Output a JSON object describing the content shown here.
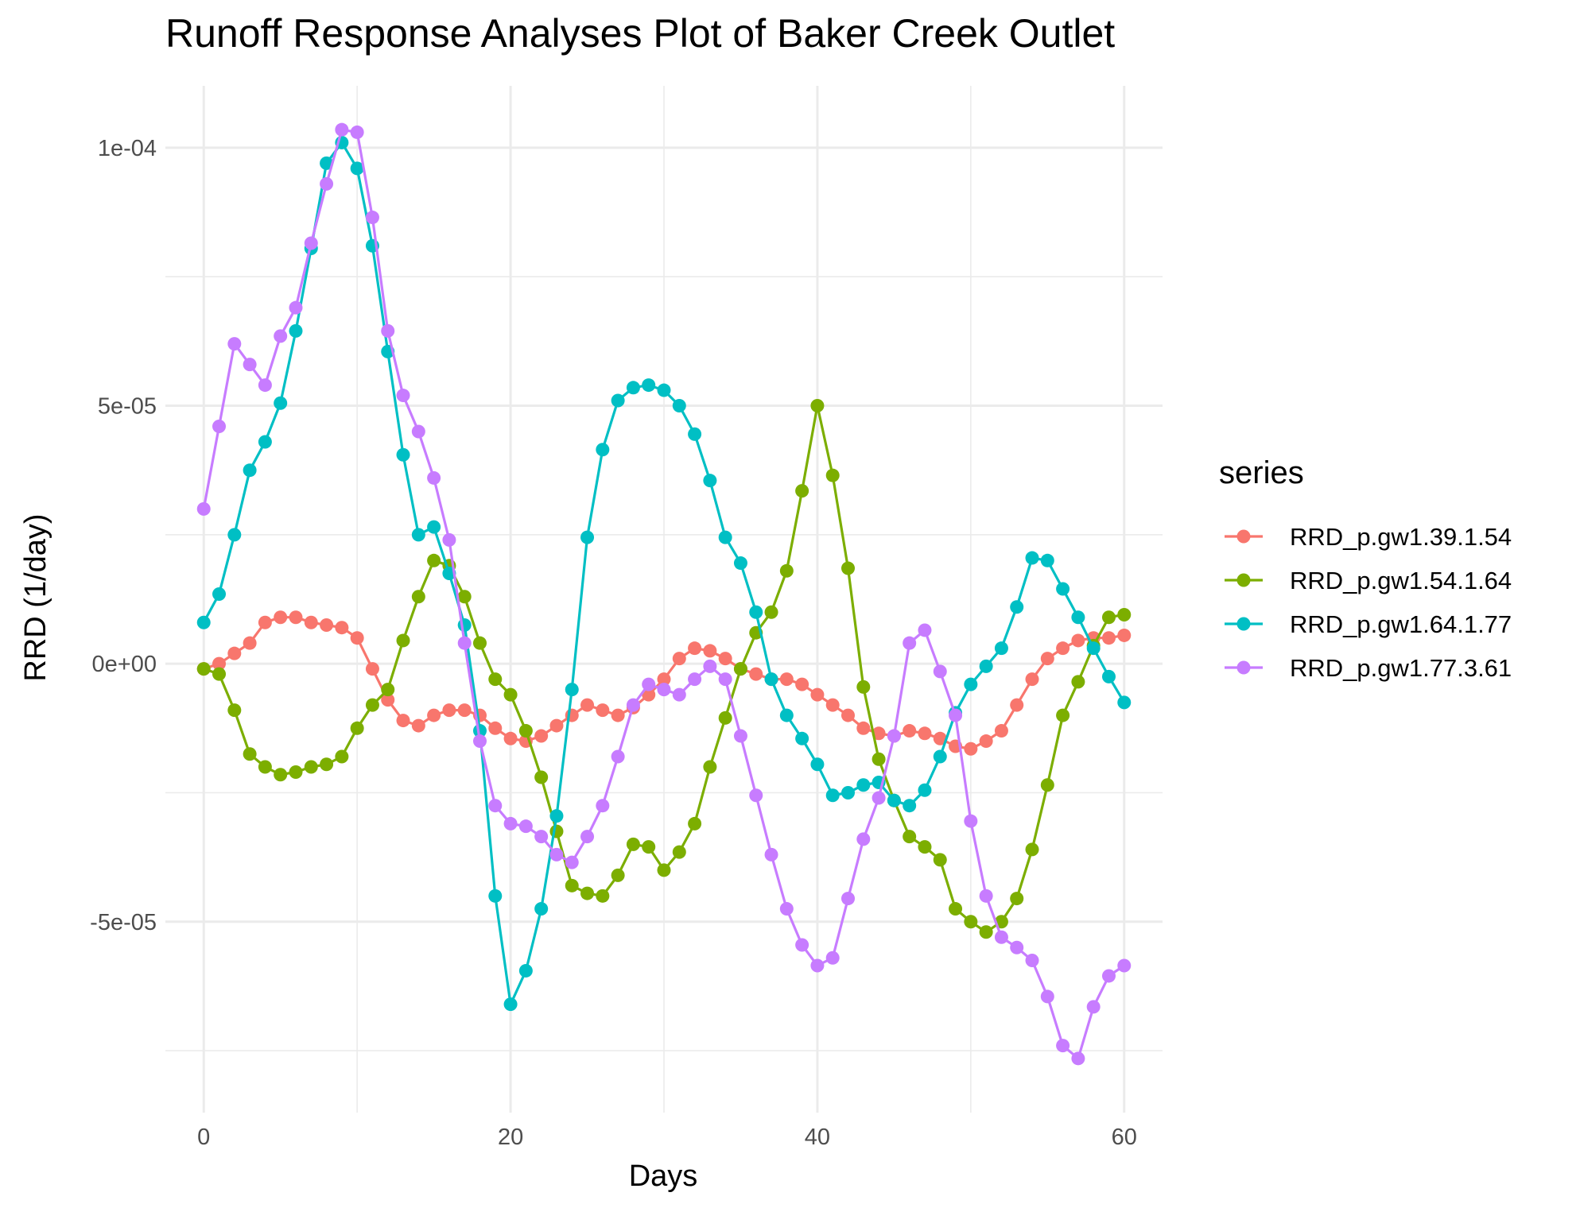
{
  "chart_data": {
    "type": "line",
    "title": "Runoff Response Analyses Plot of Baker Creek Outlet",
    "xlabel": "Days",
    "ylabel": "RRD (1/day)",
    "xlim": [
      -2.5,
      62.5
    ],
    "ylim": [
      -8.7e-05,
      0.000112
    ],
    "x_ticks": [
      0,
      20,
      40,
      60
    ],
    "x_tick_labels": [
      "0",
      "20",
      "40",
      "60"
    ],
    "y_ticks": [
      -5e-05,
      0,
      5e-05,
      0.0001
    ],
    "y_tick_labels": [
      "-5e-05",
      "0e+00",
      "5e-05",
      "1e-04"
    ],
    "grid": true,
    "legend": {
      "title": "series",
      "position": "right"
    },
    "x": [
      0,
      1,
      2,
      3,
      4,
      5,
      6,
      7,
      8,
      9,
      10,
      11,
      12,
      13,
      14,
      15,
      16,
      17,
      18,
      19,
      20,
      21,
      22,
      23,
      24,
      25,
      26,
      27,
      28,
      29,
      30,
      31,
      32,
      33,
      34,
      35,
      36,
      37,
      38,
      39,
      40,
      41,
      42,
      43,
      44,
      45,
      46,
      47,
      48,
      49,
      50,
      51,
      52,
      53,
      54,
      55,
      56,
      57,
      58,
      59,
      60
    ],
    "series": [
      {
        "name": "RRD_p.gw1.39.1.54",
        "color": "#F8766D",
        "values": [
          -1e-06,
          0,
          2e-06,
          4e-06,
          8e-06,
          9e-06,
          9e-06,
          8e-06,
          7.5e-06,
          7e-06,
          5e-06,
          -1e-06,
          -7e-06,
          -1.1e-05,
          -1.2e-05,
          -1e-05,
          -9e-06,
          -9e-06,
          -1e-05,
          -1.25e-05,
          -1.45e-05,
          -1.5e-05,
          -1.4e-05,
          -1.2e-05,
          -1e-05,
          -8e-06,
          -9e-06,
          -1e-05,
          -8.5e-06,
          -6e-06,
          -3e-06,
          1e-06,
          3e-06,
          2.5e-06,
          1e-06,
          -1e-06,
          -2e-06,
          -3e-06,
          -3e-06,
          -4e-06,
          -6e-06,
          -8e-06,
          -1e-05,
          -1.25e-05,
          -1.35e-05,
          -1.4e-05,
          -1.3e-05,
          -1.35e-05,
          -1.45e-05,
          -1.6e-05,
          -1.65e-05,
          -1.5e-05,
          -1.3e-05,
          -8e-06,
          -3e-06,
          1e-06,
          3e-06,
          4.5e-06,
          5e-06,
          5e-06,
          5.5e-06
        ]
      },
      {
        "name": "RRD_p.gw1.54.1.64",
        "color": "#7CAE00",
        "values": [
          -1e-06,
          -2e-06,
          -9e-06,
          -1.75e-05,
          -2e-05,
          -2.15e-05,
          -2.1e-05,
          -2e-05,
          -1.95e-05,
          -1.8e-05,
          -1.25e-05,
          -8e-06,
          -5e-06,
          4.5e-06,
          1.3e-05,
          2e-05,
          1.9e-05,
          1.3e-05,
          4e-06,
          -3e-06,
          -6e-06,
          -1.3e-05,
          -2.2e-05,
          -3.25e-05,
          -4.3e-05,
          -4.45e-05,
          -4.5e-05,
          -4.1e-05,
          -3.5e-05,
          -3.55e-05,
          -4e-05,
          -3.65e-05,
          -3.1e-05,
          -2e-05,
          -1.05e-05,
          -1e-06,
          6e-06,
          1e-05,
          1.8e-05,
          3.35e-05,
          5e-05,
          3.65e-05,
          1.85e-05,
          -4.5e-06,
          -1.85e-05,
          -2.65e-05,
          -3.35e-05,
          -3.55e-05,
          -3.8e-05,
          -4.75e-05,
          -5e-05,
          -5.2e-05,
          -5e-05,
          -4.55e-05,
          -3.6e-05,
          -2.35e-05,
          -1e-05,
          -3.5e-06,
          3.5e-06,
          9e-06,
          9.5e-06
        ]
      },
      {
        "name": "RRD_p.gw1.64.1.77",
        "color": "#00BFC4",
        "values": [
          8e-06,
          1.35e-05,
          2.5e-05,
          3.75e-05,
          4.3e-05,
          5.05e-05,
          6.45e-05,
          8.05e-05,
          9.7e-05,
          0.000101,
          9.6e-05,
          8.1e-05,
          6.05e-05,
          4.05e-05,
          2.5e-05,
          2.65e-05,
          1.75e-05,
          7.5e-06,
          -1.3e-05,
          -4.5e-05,
          -6.6e-05,
          -5.95e-05,
          -4.75e-05,
          -2.95e-05,
          -5e-06,
          2.45e-05,
          4.15e-05,
          5.1e-05,
          5.35e-05,
          5.4e-05,
          5.3e-05,
          5e-05,
          4.45e-05,
          3.55e-05,
          2.45e-05,
          1.95e-05,
          1e-05,
          -3e-06,
          -1e-05,
          -1.45e-05,
          -1.95e-05,
          -2.55e-05,
          -2.5e-05,
          -2.35e-05,
          -2.3e-05,
          -2.65e-05,
          -2.75e-05,
          -2.45e-05,
          -1.8e-05,
          -9.5e-06,
          -4e-06,
          -5e-07,
          3e-06,
          1.1e-05,
          2.05e-05,
          2e-05,
          1.45e-05,
          9e-06,
          3e-06,
          -2.5e-06,
          -7.5e-06
        ]
      },
      {
        "name": "RRD_p.gw1.77.3.61",
        "color": "#C77CFF",
        "values": [
          3e-05,
          4.6e-05,
          6.2e-05,
          5.8e-05,
          5.4e-05,
          6.35e-05,
          6.9e-05,
          8.15e-05,
          9.3e-05,
          0.0001035,
          0.000103,
          8.65e-05,
          6.45e-05,
          5.2e-05,
          4.5e-05,
          3.6e-05,
          2.4e-05,
          4e-06,
          -1.5e-05,
          -2.75e-05,
          -3.1e-05,
          -3.15e-05,
          -3.35e-05,
          -3.7e-05,
          -3.85e-05,
          -3.35e-05,
          -2.75e-05,
          -1.8e-05,
          -8e-06,
          -4e-06,
          -5e-06,
          -6e-06,
          -3e-06,
          -5e-07,
          -3e-06,
          -1.4e-05,
          -2.55e-05,
          -3.7e-05,
          -4.75e-05,
          -5.45e-05,
          -5.85e-05,
          -5.7e-05,
          -4.55e-05,
          -3.4e-05,
          -2.6e-05,
          -1.4e-05,
          4e-06,
          6.5e-06,
          -1.5e-06,
          -1e-05,
          -3.05e-05,
          -4.5e-05,
          -5.3e-05,
          -5.5e-05,
          -5.75e-05,
          -6.45e-05,
          -7.4e-05,
          -7.65e-05,
          -6.65e-05,
          -6.05e-05,
          -5.85e-05
        ]
      }
    ]
  }
}
